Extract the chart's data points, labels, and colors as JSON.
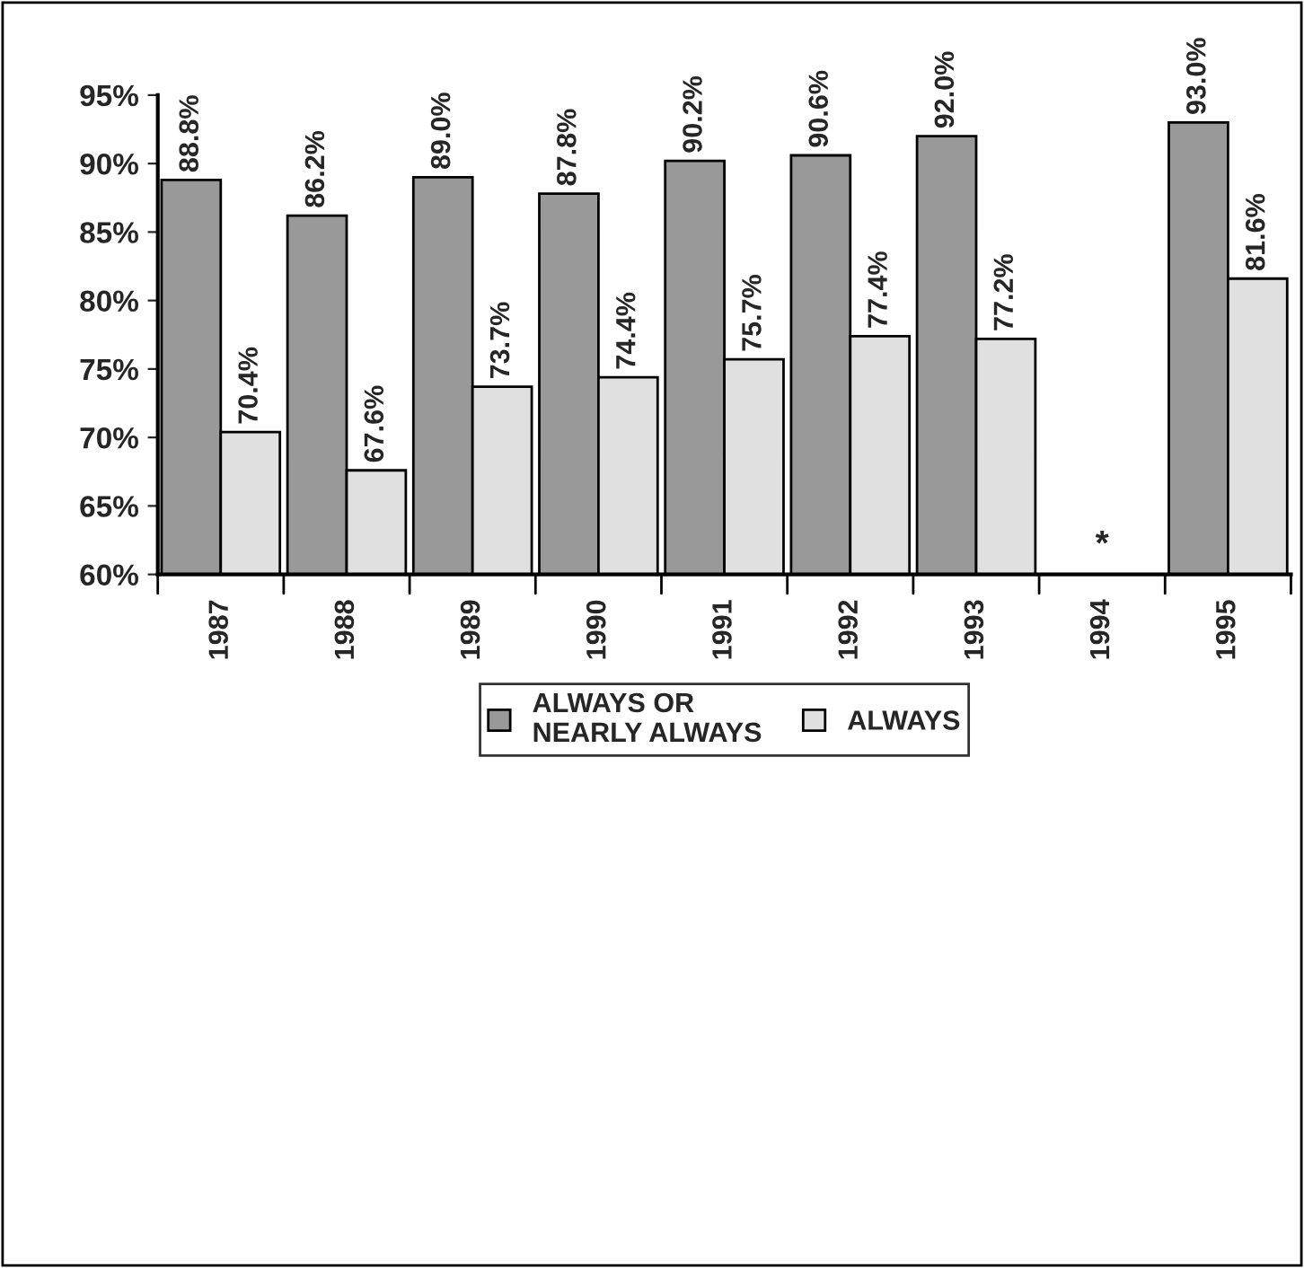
{
  "chart_data": {
    "type": "bar",
    "categories": [
      "1987",
      "1988",
      "1989",
      "1990",
      "1991",
      "1992",
      "1993",
      "1994",
      "1995"
    ],
    "series": [
      {
        "name": "ALWAYS OR\nNEARLY ALWAYS",
        "color": "#999999",
        "values": [
          88.8,
          86.2,
          89.0,
          87.8,
          90.2,
          90.6,
          92.0,
          null,
          93.0
        ],
        "value_labels": [
          "88.8%",
          "86.2%",
          "89.0%",
          "87.8%",
          "90.2%",
          "90.6%",
          "92.0%",
          null,
          "93.0%"
        ]
      },
      {
        "name": "ALWAYS",
        "color": "#e0e0e0",
        "values": [
          70.4,
          67.6,
          73.7,
          74.4,
          75.7,
          77.4,
          77.2,
          null,
          81.6
        ],
        "value_labels": [
          "70.4%",
          "67.6%",
          "73.7%",
          "74.4%",
          "75.7%",
          "77.4%",
          "77.2%",
          null,
          "81.6%"
        ]
      }
    ],
    "ylim": [
      60,
      95
    ],
    "yticks": [
      {
        "value": 60,
        "label": "60%"
      },
      {
        "value": 65,
        "label": "65%"
      },
      {
        "value": 70,
        "label": "70%"
      },
      {
        "value": 75,
        "label": "75%"
      },
      {
        "value": 80,
        "label": "80%"
      },
      {
        "value": 85,
        "label": "85%"
      },
      {
        "value": 90,
        "label": "90%"
      },
      {
        "value": 95,
        "label": "95%"
      }
    ],
    "annotations": [
      "*"
    ],
    "legend": "bottom",
    "grid": false
  }
}
